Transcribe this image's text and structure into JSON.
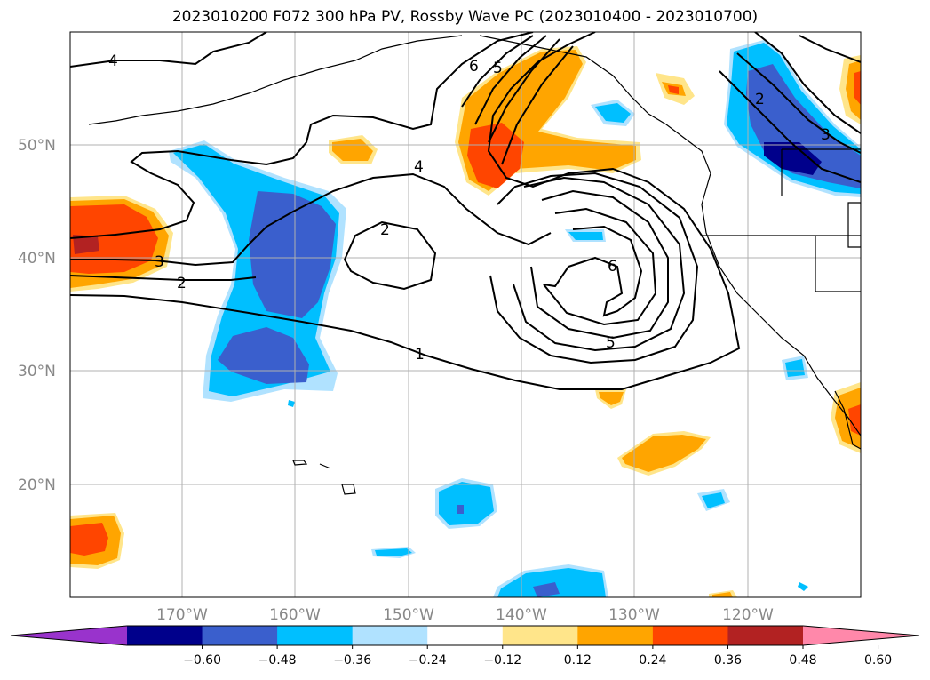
{
  "title": "2023010200 F072 300 hPa PV, Rossby Wave PC (2023010400 - 2023010700)",
  "lat_labels": [
    "50°N",
    "40°N",
    "30°N",
    "20°N"
  ],
  "lon_labels": [
    "170°W",
    "160°W",
    "150°W",
    "140°W",
    "130°W",
    "120°W"
  ],
  "contour_labels": [
    "4",
    "6",
    "5",
    "4",
    "2",
    "3",
    "2",
    "1",
    "6",
    "5",
    "2",
    "3"
  ],
  "colorbar": {
    "tick_labels": [
      "−0.60",
      "−0.48",
      "−0.36",
      "−0.24",
      "−0.12",
      "0.12",
      "0.24",
      "0.36",
      "0.48",
      "0.60"
    ],
    "colors": [
      "#9933cc",
      "#00008b",
      "#3a5fcd",
      "#00bfff",
      "#b0e2ff",
      "#ffffff",
      "#ffe58a",
      "#ffa500",
      "#ff4500",
      "#b22222",
      "#ff88aa"
    ]
  },
  "colors": {
    "grid": "#b0b0b0",
    "contour": "#000000",
    "coast": "#000000"
  }
}
